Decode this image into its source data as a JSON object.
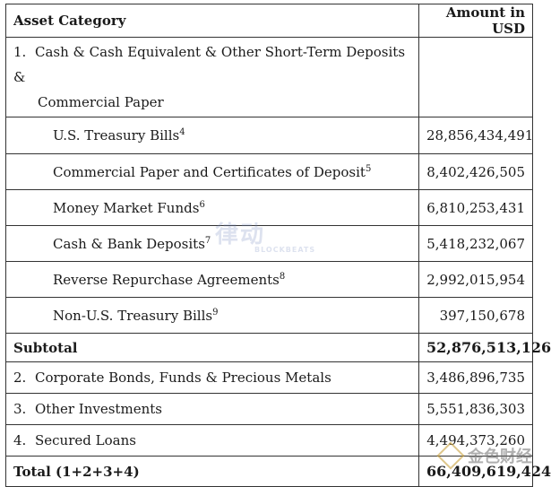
{
  "header": {
    "category": "Asset Category",
    "amount": "Amount in USD"
  },
  "group1": {
    "number": "1.",
    "label_line1": "Cash & Cash Equivalent & Other Short-Term Deposits &",
    "label_line2": "Commercial Paper",
    "items": [
      {
        "label": "U.S. Treasury Bills",
        "note": "4",
        "amount": "28,856,434,491"
      },
      {
        "label": "Commercial Paper and Certificates of Deposit",
        "note": "5",
        "amount": "8,402,426,505"
      },
      {
        "label": "Money Market Funds",
        "note": "6",
        "amount": "6,810,253,431"
      },
      {
        "label": "Cash & Bank Deposits",
        "note": "7",
        "amount": "5,418,232,067"
      },
      {
        "label": "Reverse Repurchase Agreements",
        "note": "8",
        "amount": "2,992,015,954"
      },
      {
        "label": "Non-U.S. Treasury Bills",
        "note": "9",
        "amount": "397,150,678"
      }
    ]
  },
  "subtotal": {
    "label": "Subtotal",
    "amount": "52,876,513,126"
  },
  "rows": [
    {
      "number": "2.",
      "label": "Corporate Bonds, Funds & Precious Metals",
      "amount": "3,486,896,735"
    },
    {
      "number": "3.",
      "label": "Other Investments",
      "amount": "5,551,836,303"
    },
    {
      "number": "4.",
      "label": "Secured Loans",
      "amount": "4,494,373,260"
    }
  ],
  "total": {
    "label": "Total (1+2+3+4)",
    "amount": "66,409,619,424"
  },
  "watermark": {
    "text": "律动",
    "sub": "BLOCKBEATS"
  },
  "logo": {
    "text": "金色财经"
  }
}
